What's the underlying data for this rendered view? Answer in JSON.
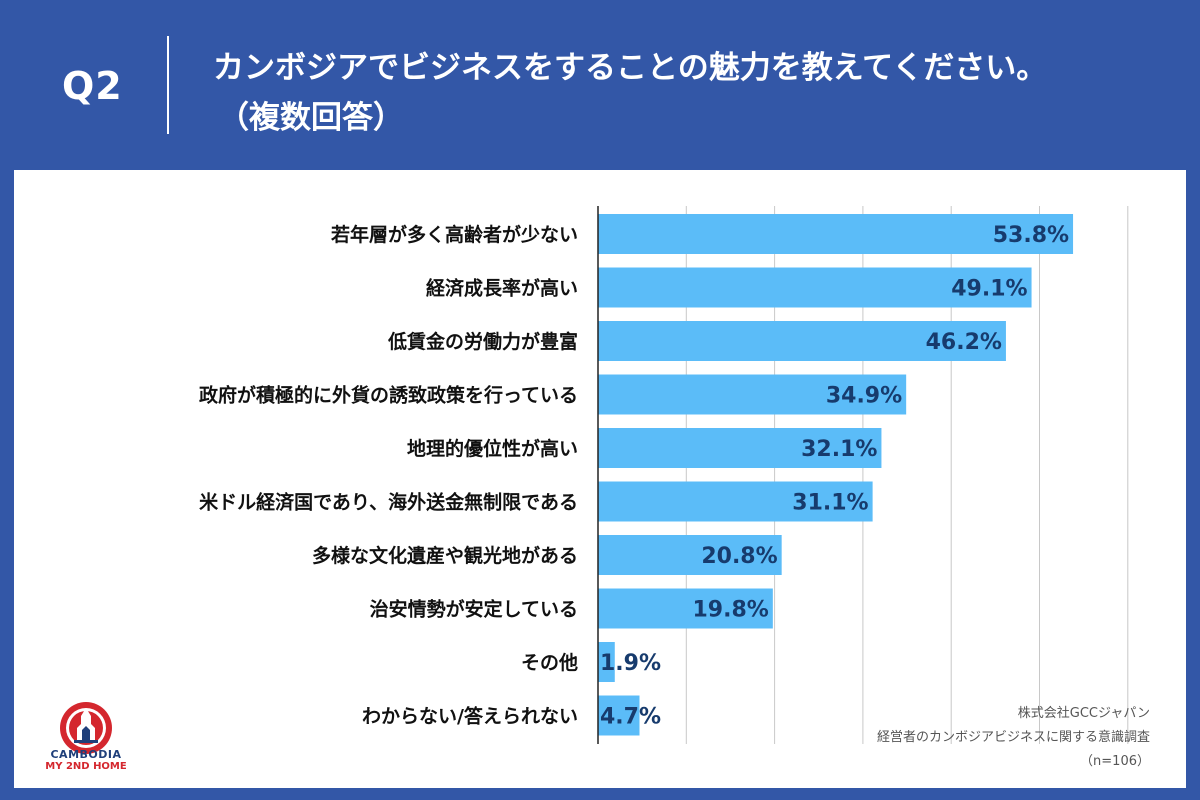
{
  "header": {
    "q_label": "Q2",
    "title_line1": "カンボジアでビジネスをすることの魅力を教えてください。",
    "title_line2": "（複数回答）"
  },
  "colors": {
    "background": "#3357a7",
    "bar": "#5bbcf8",
    "value_text": "#173b6d",
    "grid": "#c8c8c8"
  },
  "chart_data": {
    "type": "bar",
    "orientation": "horizontal",
    "categories": [
      "若年層が多く高齢者が少ない",
      "経済成長率が高い",
      "低賃金の労働力が豊富",
      "政府が積極的に外貨の誘致政策を行っている",
      "地理的優位性が高い",
      "米ドル経済国であり、海外送金無制限である",
      "多様な文化遺産や観光地がある",
      "治安情勢が安定している",
      "その他",
      "わからない/答えられない"
    ],
    "values": [
      53.8,
      49.1,
      46.2,
      34.9,
      32.1,
      31.1,
      20.8,
      19.8,
      1.9,
      4.7
    ],
    "value_labels": [
      "53.8%",
      "49.1%",
      "46.2%",
      "34.9%",
      "32.1%",
      "31.1%",
      "20.8%",
      "19.8%",
      "1.9%",
      "4.7%"
    ],
    "xlim": [
      0,
      60
    ],
    "grid": true,
    "legend": "none"
  },
  "logo": {
    "line1": "CAMBODIA",
    "line2": "MY 2ND HOME",
    "icon": "angkor-crest-icon"
  },
  "source": {
    "line1": "株式会社GCCジャパン",
    "line2": "経営者のカンボジアビジネスに関する意識調査",
    "line3": "（n=106）"
  }
}
